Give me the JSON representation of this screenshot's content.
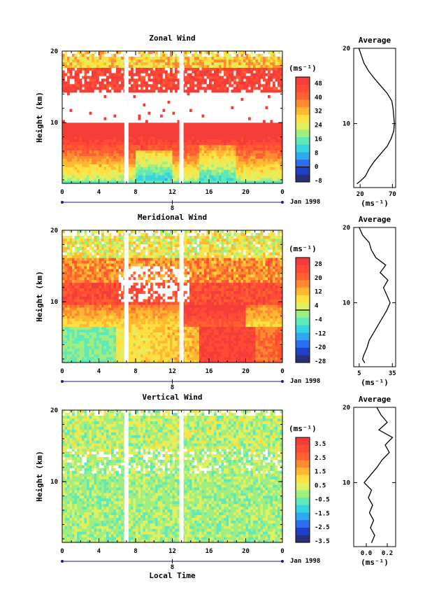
{
  "chart_data": [
    {
      "type": "heatmap",
      "title": "Zonal Wind",
      "ylabel": "Height (km)",
      "y_ticks": [
        "20",
        "10"
      ],
      "ylim": [
        1.5,
        20
      ],
      "xlim": [
        0,
        24
      ],
      "x_ticks": [
        "0",
        "4",
        "8",
        "12",
        "16",
        "20",
        "0"
      ],
      "date_marker": "8",
      "date_label": "Jan 1998",
      "data_gaps_hours": [
        7,
        13
      ],
      "colorbar": {
        "unit_label": "(ms⁻¹)",
        "tick_labels": [
          "48",
          "40",
          "32",
          "24",
          "16",
          "8",
          "0",
          "-8"
        ],
        "levels": [
          -8,
          -4,
          0,
          4,
          8,
          12,
          16,
          20,
          24,
          28,
          32,
          36,
          40,
          44,
          48
        ],
        "colors": [
          "#2a2f7a",
          "#1f3fc8",
          "#2b6ef0",
          "#30a8f0",
          "#35d4e0",
          "#5fe8b8",
          "#a0ee80",
          "#e0f060",
          "#ffe040",
          "#ffb830",
          "#ff8a30",
          "#ff6030",
          "#ff4a35",
          "#f43c38"
        ],
        "zero_line": 0
      },
      "profile": {
        "title": "Average",
        "x_ticks": [
          "20",
          "70"
        ],
        "xlim": [
          10,
          75
        ],
        "xlabel": "(ms⁻¹)",
        "y_ticks": [
          "20",
          "10"
        ],
        "heights_km": [
          2,
          2.5,
          3,
          4,
          5,
          6,
          7,
          8,
          9,
          10,
          11,
          12,
          13,
          14,
          15,
          16,
          17,
          18,
          19,
          20
        ],
        "values": [
          15,
          22,
          28,
          34,
          42,
          52,
          62,
          68,
          72,
          73,
          72,
          71,
          69,
          62,
          52,
          42,
          33,
          26,
          22,
          18
        ]
      }
    },
    {
      "type": "heatmap",
      "title": "Meridional Wind",
      "ylabel": "Height (km)",
      "y_ticks": [
        "20",
        "10"
      ],
      "ylim": [
        1.5,
        20
      ],
      "xlim": [
        0,
        24
      ],
      "x_ticks": [
        "0",
        "4",
        "8",
        "12",
        "16",
        "20",
        "0"
      ],
      "date_marker": "8",
      "date_label": "Jan 1998",
      "data_gaps_hours": [
        7,
        13
      ],
      "colorbar": {
        "unit_label": "(ms⁻¹)",
        "tick_labels": [
          "28",
          "20",
          "12",
          "4",
          "-4",
          "-12",
          "-20",
          "-28"
        ],
        "levels": [
          -28,
          -24,
          -20,
          -16,
          -12,
          -8,
          -4,
          0,
          4,
          8,
          12,
          16,
          20,
          24,
          28
        ],
        "colors": [
          "#2a2f7a",
          "#1f3fc8",
          "#2b6ef0",
          "#30a8f0",
          "#35d4e0",
          "#5fe8b8",
          "#a0ee80",
          "#e0f060",
          "#ffe040",
          "#ffb830",
          "#ff8a30",
          "#ff6030",
          "#ff4a35",
          "#f43c38"
        ],
        "zero_line": 0
      },
      "profile": {
        "title": "Average",
        "x_ticks": [
          "5",
          "35"
        ],
        "xlim": [
          0,
          38
        ],
        "xlabel": "(ms⁻¹)",
        "y_ticks": [
          "20",
          "10"
        ],
        "heights_km": [
          2,
          2.5,
          3,
          4,
          5,
          6,
          7,
          8,
          9,
          10,
          11,
          12,
          13,
          14,
          15,
          16,
          17,
          18,
          19,
          20
        ],
        "values": [
          10,
          8,
          9,
          12,
          14,
          18,
          22,
          26,
          30,
          33,
          30,
          27,
          31,
          24,
          29,
          20,
          16,
          14,
          8,
          5
        ]
      }
    },
    {
      "type": "heatmap",
      "title": "Vertical Wind",
      "ylabel": "Height (km)",
      "y_ticks": [
        "20",
        "10"
      ],
      "ylim": [
        1.5,
        20
      ],
      "xlim": [
        0,
        24
      ],
      "x_ticks": [
        "0",
        "4",
        "8",
        "12",
        "16",
        "20",
        "0"
      ],
      "date_marker": "8",
      "date_label": "Jan 1998",
      "xlabel": "Local Time",
      "data_gaps_hours": [
        7,
        13
      ],
      "colorbar": {
        "unit_label": "(ms⁻¹)",
        "tick_labels": [
          "3.5",
          "2.5",
          "1.5",
          "0.5",
          "-0.5",
          "-1.5",
          "-2.5",
          "-3.5"
        ],
        "levels": [
          -3.5,
          -3,
          -2.5,
          -2,
          -1.5,
          -1,
          -0.5,
          0,
          0.5,
          1,
          1.5,
          2,
          2.5,
          3,
          3.5
        ],
        "colors": [
          "#2a2f7a",
          "#1f3fc8",
          "#2b6ef0",
          "#30a8f0",
          "#35d4e0",
          "#5fe8b8",
          "#a0ee80",
          "#e0f060",
          "#ffe040",
          "#ffb830",
          "#ff8a30",
          "#ff6030",
          "#ff4a35",
          "#f43c38"
        ],
        "zero_line": null
      },
      "profile": {
        "title": "Average",
        "x_ticks": [
          "0.0",
          "0.2"
        ],
        "xlim": [
          -0.12,
          0.28
        ],
        "xlabel": "(ms⁻¹)",
        "y_ticks": [
          "20",
          "10"
        ],
        "heights_km": [
          2,
          3,
          4,
          5,
          6,
          7,
          8,
          9,
          10,
          11,
          12,
          13,
          14,
          15,
          16,
          17,
          18,
          19,
          20
        ],
        "values": [
          0.05,
          0.08,
          0.04,
          0.07,
          0.03,
          0.06,
          0.02,
          0.05,
          -0.02,
          0.04,
          0.1,
          0.15,
          0.22,
          0.18,
          0.25,
          0.12,
          0.2,
          0.14,
          0.1
        ]
      }
    }
  ]
}
